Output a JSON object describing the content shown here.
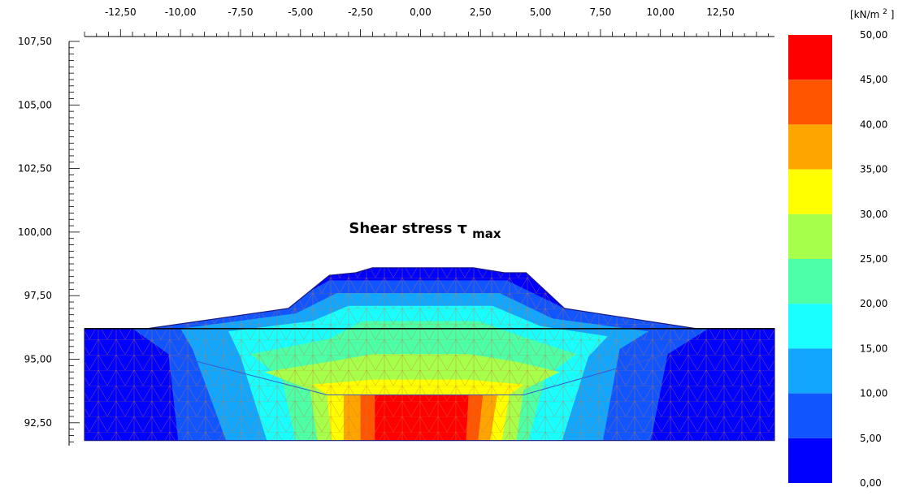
{
  "chart_data": {
    "type": "contour",
    "title": {
      "main": "Shear stress ",
      "symbol": "τ",
      "subscript": "max"
    },
    "x_axis": {
      "position": "top",
      "range": [
        -14.0,
        14.75
      ],
      "ticks": [
        -12.5,
        -10,
        -7.5,
        -5,
        -2.5,
        0,
        2.5,
        5,
        7.5,
        10,
        12.5
      ],
      "tick_labels": [
        "-12,50",
        "-10,00",
        "-7,50",
        "-5,00",
        "-2,50",
        "0,00",
        "2,50",
        "5,00",
        "7,50",
        "10,00",
        "12,50"
      ]
    },
    "y_axis": {
      "position": "left",
      "range": [
        91.6,
        107.5
      ],
      "ticks": [
        107.5,
        105,
        102.5,
        100,
        97.5,
        95,
        92.5
      ],
      "tick_labels": [
        "107,50",
        "105,00",
        "102,50",
        "100,00",
        "97,50",
        "95,00",
        "92,50"
      ]
    },
    "legend": {
      "unit_label": "[kN/m",
      "unit_superscript": "2",
      "unit_close": "]",
      "placement": "right",
      "levels": [
        50,
        45,
        40,
        35,
        30,
        25,
        20,
        15,
        10,
        5,
        0
      ],
      "level_labels": [
        "50,00",
        "45,00",
        "40,00",
        "35,00",
        "30,00",
        "25,00",
        "20,00",
        "15,00",
        "10,00",
        "5,00",
        "0,00"
      ],
      "colors": [
        "#ff0000",
        "#ff5500",
        "#ffa500",
        "#ffff00",
        "#a6ff4a",
        "#4dffa6",
        "#19ffff",
        "#13a6ff",
        "#1155ff",
        "#0000ff"
      ]
    },
    "geometry": {
      "ground_top_y": 96.2,
      "model_bottom_y": 91.8,
      "model_x": [
        -14.0,
        14.75
      ],
      "embankment_outline": [
        [
          -11.4,
          96.2
        ],
        [
          -5.5,
          97.0
        ],
        [
          -3.8,
          98.3
        ],
        [
          -2.7,
          98.4
        ],
        [
          -2.0,
          98.6
        ],
        [
          2.2,
          98.6
        ],
        [
          3.5,
          98.4
        ],
        [
          4.4,
          98.4
        ],
        [
          6.0,
          97.0
        ],
        [
          11.5,
          96.2
        ]
      ]
    }
  }
}
